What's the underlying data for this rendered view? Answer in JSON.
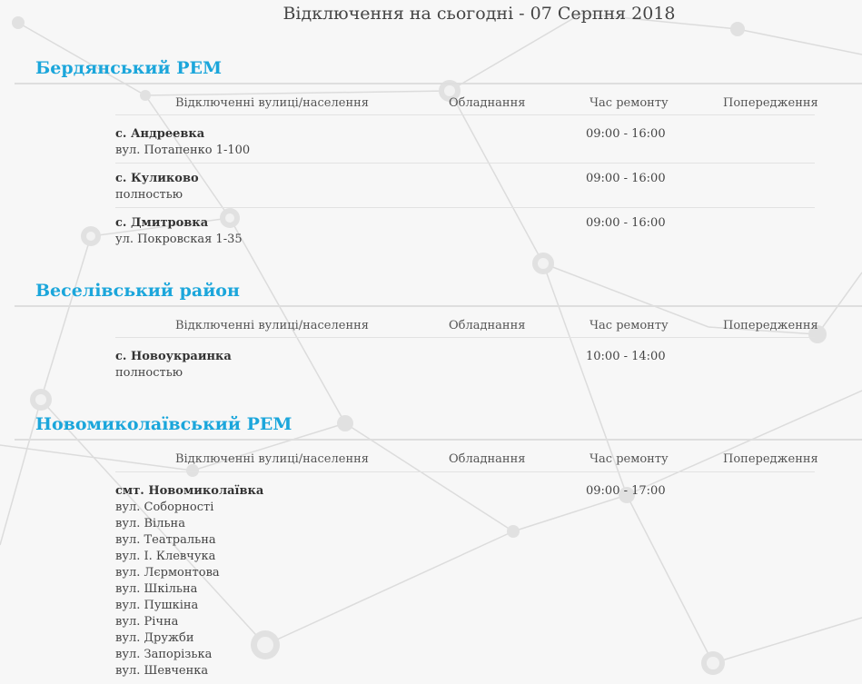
{
  "page": {
    "title": "Відключення на сьогодні - 07 Серпня 2018"
  },
  "columns": {
    "streets": "Відключенні вулиці/населення",
    "equipment": "Обладнання",
    "repair_time": "Час ремонту",
    "warnings": "Попередження"
  },
  "sections": [
    {
      "title": "Бердянський РЕМ",
      "rows": [
        {
          "location": "с. Андреевка",
          "details": [
            "вул. Потапенко 1-100"
          ],
          "time": "09:00 - 16:00"
        },
        {
          "location": "с. Куликово",
          "details": [
            "полностью"
          ],
          "time": "09:00 - 16:00"
        },
        {
          "location": "с. Дмитровка",
          "details": [
            "ул. Покровская 1-35"
          ],
          "time": "09:00 - 16:00"
        }
      ]
    },
    {
      "title": "Веселівський район",
      "rows": [
        {
          "location": "с. Новоукраинка",
          "details": [
            "полностью"
          ],
          "time": "10:00 - 14:00"
        }
      ]
    },
    {
      "title": "Новомиколаївський РЕМ",
      "rows": [
        {
          "location": "смт. Новомиколаївка",
          "details": [
            "вул. Соборності",
            "вул. Вільна",
            "вул. Театральна",
            "вул. І. Клевчука",
            "вул. Лєрмонтова",
            "вул. Шкільна",
            "вул. Пушкіна",
            "вул. Річна",
            "вул. Дружби",
            "вул. Запорізька",
            "вул. Шевченка"
          ],
          "time": "09:00 - 17:00"
        }
      ]
    }
  ]
}
